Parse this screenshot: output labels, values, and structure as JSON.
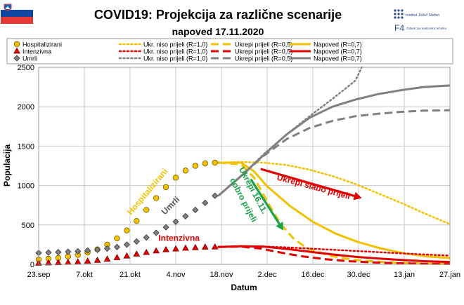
{
  "header": {
    "title": "COVID19: Projekcija za različne scenarije",
    "subtitle": "napoved 17.11.2020",
    "flag_colors": [
      "#ffffff",
      "#0d47a1",
      "#e53935"
    ],
    "logo_ijs_text": "Institut Jožef Stefan",
    "logo_f4_mark": "F4",
    "logo_f4_text": "Odsek za reaktorsko tehniko"
  },
  "legend": {
    "entries": [
      {
        "label": "Hospitalizirani",
        "color": "#f2c100",
        "style": "marker-circle"
      },
      {
        "label": "Ukr. niso prijeli (R=1,0)",
        "color": "#f2c100",
        "style": "dotted"
      },
      {
        "label": "Ukrepi prijeli (R=0,5)",
        "color": "#f2c100",
        "style": "dashed"
      },
      {
        "label": "Napoved (R=0,7)",
        "color": "#f2c100",
        "style": "solid"
      },
      {
        "label": "Intenzivna",
        "color": "#e00000",
        "style": "marker-triangle"
      },
      {
        "label": "Ukr. niso prijeli (R=1,0)",
        "color": "#e00000",
        "style": "dotted"
      },
      {
        "label": "Ukrepi prijeli (R=0,5)",
        "color": "#e00000",
        "style": "dashed"
      },
      {
        "label": "Napoved (R=0,7)",
        "color": "#e00000",
        "style": "solid"
      },
      {
        "label": "Umrli",
        "color": "#808080",
        "style": "marker-diamond"
      },
      {
        "label": "Ukr. niso prijeli (R=1,0)",
        "color": "#808080",
        "style": "dotted"
      },
      {
        "label": "Ukrepi prijeli (R=0,5)",
        "color": "#808080",
        "style": "dashed"
      },
      {
        "label": "Napoved (R=0,7)",
        "color": "#808080",
        "style": "solid"
      }
    ]
  },
  "chart_data": {
    "type": "line",
    "title": "COVID19: Projekcija za različne scenarije",
    "subtitle": "napoved 17.11.2020",
    "xlabel": "Datum",
    "ylabel": "Populacija",
    "ylim": [
      0,
      2500
    ],
    "yticks": [
      0,
      500,
      1000,
      1500,
      2000,
      2500
    ],
    "xlim": [
      "2020-09-23",
      "2021-01-27"
    ],
    "xticks": [
      {
        "date": "2020-09-23",
        "label": "23.sep"
      },
      {
        "date": "2020-10-07",
        "label": "7.okt"
      },
      {
        "date": "2020-10-21",
        "label": "21.okt"
      },
      {
        "date": "2020-11-04",
        "label": "4.nov"
      },
      {
        "date": "2020-11-18",
        "label": "18.nov"
      },
      {
        "date": "2020-12-02",
        "label": "2.dec"
      },
      {
        "date": "2020-12-16",
        "label": "16.dec"
      },
      {
        "date": "2020-12-30",
        "label": "30.dec"
      },
      {
        "date": "2021-01-13",
        "label": "13.jan"
      },
      {
        "date": "2021-01-27",
        "label": "27.jan"
      }
    ],
    "grid": true,
    "series": [
      {
        "name": "Hospitalizirani",
        "color": "#f2c100",
        "style": "markers",
        "marker": "circle",
        "x": [
          "2020-09-23",
          "2020-09-26",
          "2020-09-29",
          "2020-10-02",
          "2020-10-05",
          "2020-10-08",
          "2020-10-11",
          "2020-10-14",
          "2020-10-17",
          "2020-10-20",
          "2020-10-23",
          "2020-10-26",
          "2020-10-29",
          "2020-11-01",
          "2020-11-04",
          "2020-11-07",
          "2020-11-10",
          "2020-11-13",
          "2020-11-16"
        ],
        "y": [
          60,
          70,
          80,
          100,
          120,
          150,
          190,
          250,
          330,
          430,
          550,
          690,
          840,
          980,
          1100,
          1190,
          1250,
          1280,
          1290
        ]
      },
      {
        "name": "Intenzivna",
        "color": "#e00000",
        "style": "markers",
        "marker": "triangle",
        "x": [
          "2020-09-23",
          "2020-09-26",
          "2020-09-29",
          "2020-10-02",
          "2020-10-05",
          "2020-10-08",
          "2020-10-11",
          "2020-10-14",
          "2020-10-17",
          "2020-10-20",
          "2020-10-23",
          "2020-10-26",
          "2020-10-29",
          "2020-11-01",
          "2020-11-04",
          "2020-11-07",
          "2020-11-10",
          "2020-11-13",
          "2020-11-16"
        ],
        "y": [
          15,
          18,
          20,
          25,
          30,
          40,
          50,
          65,
          85,
          105,
          130,
          150,
          170,
          185,
          195,
          205,
          212,
          218,
          220
        ]
      },
      {
        "name": "Umrli",
        "color": "#808080",
        "style": "markers",
        "marker": "diamond",
        "x": [
          "2020-09-23",
          "2020-09-26",
          "2020-09-29",
          "2020-10-02",
          "2020-10-05",
          "2020-10-08",
          "2020-10-11",
          "2020-10-14",
          "2020-10-17",
          "2020-10-20",
          "2020-10-23",
          "2020-10-26",
          "2020-10-29",
          "2020-11-01",
          "2020-11-04",
          "2020-11-07",
          "2020-11-10",
          "2020-11-13",
          "2020-11-16"
        ],
        "y": [
          145,
          150,
          155,
          160,
          165,
          175,
          185,
          200,
          220,
          250,
          290,
          340,
          400,
          470,
          540,
          610,
          690,
          780,
          870
        ]
      },
      {
        "name": "Ukr. niso prijeli (R=1,0)",
        "color": "#f2c100",
        "style": "dotted",
        "x": [
          "2020-11-17",
          "2020-11-24",
          "2020-12-01",
          "2020-12-08",
          "2020-12-15",
          "2020-12-22",
          "2020-12-29",
          "2021-01-05",
          "2021-01-12",
          "2021-01-19",
          "2021-01-27"
        ],
        "y": [
          1290,
          1300,
          1290,
          1260,
          1200,
          1120,
          1020,
          900,
          780,
          650,
          510
        ]
      },
      {
        "name": "Ukrepi prijeli (R=0,5)",
        "color": "#f2c100",
        "style": "dashed",
        "x": [
          "2020-11-17",
          "2020-11-24",
          "2020-11-28",
          "2020-12-02",
          "2020-12-06",
          "2020-12-10",
          "2020-12-14",
          "2020-12-21",
          "2020-12-28",
          "2021-01-04",
          "2021-01-11",
          "2021-01-18",
          "2021-01-27"
        ],
        "y": [
          1290,
          1270,
          1100,
          800,
          520,
          330,
          210,
          110,
          60,
          35,
          20,
          10,
          5
        ]
      },
      {
        "name": "Napoved (R=0,7)",
        "color": "#f2c100",
        "style": "solid",
        "x": [
          "2020-11-17",
          "2020-11-24",
          "2020-11-28",
          "2020-12-02",
          "2020-12-09",
          "2020-12-16",
          "2020-12-23",
          "2020-12-30",
          "2021-01-06",
          "2021-01-13",
          "2021-01-20",
          "2021-01-27"
        ],
        "y": [
          1290,
          1290,
          1180,
          990,
          740,
          540,
          390,
          280,
          200,
          140,
          100,
          80
        ]
      },
      {
        "name": "Ukr. niso prijeli (R=1,0)",
        "color": "#e00000",
        "style": "dotted",
        "x": [
          "2020-11-17",
          "2020-11-24",
          "2020-12-01",
          "2020-12-08",
          "2020-12-15",
          "2020-12-22",
          "2020-12-29",
          "2021-01-05",
          "2021-01-12",
          "2021-01-19",
          "2021-01-27"
        ],
        "y": [
          220,
          228,
          225,
          215,
          200,
          185,
          170,
          155,
          140,
          125,
          110
        ]
      },
      {
        "name": "Ukrepi prijeli (R=0,5)",
        "color": "#e00000",
        "style": "dashed",
        "x": [
          "2020-11-17",
          "2020-11-24",
          "2020-11-30",
          "2020-12-06",
          "2020-12-13",
          "2020-12-20",
          "2020-12-27",
          "2021-01-03",
          "2021-01-10",
          "2021-01-17",
          "2021-01-27"
        ],
        "y": [
          220,
          225,
          200,
          150,
          100,
          65,
          40,
          25,
          15,
          8,
          5
        ]
      },
      {
        "name": "Napoved (R=0,7)",
        "color": "#e00000",
        "style": "solid",
        "x": [
          "2020-11-17",
          "2020-11-24",
          "2020-12-01",
          "2020-12-08",
          "2020-12-15",
          "2020-12-22",
          "2020-12-29",
          "2021-01-05",
          "2021-01-12",
          "2021-01-19",
          "2021-01-27"
        ],
        "y": [
          220,
          230,
          225,
          195,
          160,
          125,
          95,
          75,
          55,
          40,
          30
        ]
      },
      {
        "name": "Ukr. niso prijeli (R=1,0)",
        "color": "#808080",
        "style": "dotted",
        "x": [
          "2020-11-17",
          "2020-11-24",
          "2020-12-01",
          "2020-12-08",
          "2020-12-15",
          "2020-12-22",
          "2020-12-29",
          "2020-12-31"
        ],
        "y": [
          870,
          1120,
          1400,
          1650,
          1880,
          2100,
          2330,
          2500
        ]
      },
      {
        "name": "Ukrepi prijeli (R=0,5)",
        "color": "#808080",
        "style": "dashed",
        "x": [
          "2020-11-17",
          "2020-11-24",
          "2020-12-01",
          "2020-12-08",
          "2020-12-15",
          "2020-12-22",
          "2020-12-29",
          "2021-01-05",
          "2021-01-12",
          "2021-01-19",
          "2021-01-27"
        ],
        "y": [
          870,
          1120,
          1380,
          1590,
          1730,
          1820,
          1880,
          1910,
          1935,
          1950,
          1955
        ]
      },
      {
        "name": "Napoved (R=0,7)",
        "color": "#808080",
        "style": "solid",
        "x": [
          "2020-11-17",
          "2020-11-24",
          "2020-12-01",
          "2020-12-08",
          "2020-12-15",
          "2020-12-22",
          "2020-12-29",
          "2021-01-05",
          "2021-01-12",
          "2021-01-19",
          "2021-01-27"
        ],
        "y": [
          870,
          1120,
          1390,
          1650,
          1860,
          2000,
          2090,
          2160,
          2210,
          2250,
          2270
        ]
      }
    ],
    "annotations": [
      {
        "text": "Hospitalizirani",
        "color": "#f2c100",
        "x": "2020-10-27",
        "y": 900,
        "angle": -50
      },
      {
        "text": "Umrli",
        "color": "#555555",
        "x": "2020-11-03",
        "y": 720,
        "angle": -45
      },
      {
        "text": "Intenzivna",
        "color": "#e00000",
        "x": "2020-11-05",
        "y": 300,
        "angle": 0
      },
      {
        "text": "Ukrepi 16.11.",
        "color": "#1aa34a",
        "x": "2020-11-27",
        "y": 920,
        "angle": 62
      },
      {
        "text": "dobro prijeli",
        "color": "#1aa34a",
        "x": "2020-11-24",
        "y": 800,
        "angle": 62
      },
      {
        "text": "Ukrepi slabo prijeli",
        "color": "#e00000",
        "x": "2020-12-16",
        "y": 950,
        "angle": 15
      }
    ],
    "arrows": [
      {
        "color": "#1aa34a",
        "from": {
          "x": "2020-11-27",
          "y": 1080
        },
        "to": {
          "x": "2020-12-07",
          "y": 430
        }
      },
      {
        "color": "#e00000",
        "from": {
          "x": "2020-11-30",
          "y": 1210
        },
        "to": {
          "x": "2020-12-31",
          "y": 840
        }
      }
    ]
  }
}
